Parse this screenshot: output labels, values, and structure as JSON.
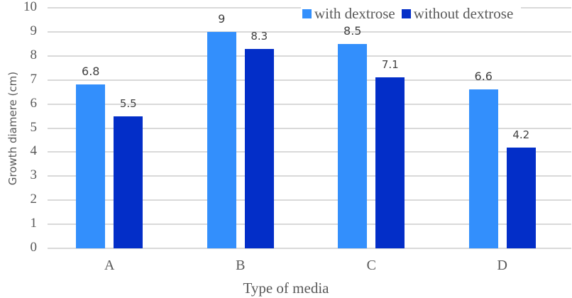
{
  "chart_data": {
    "type": "bar",
    "title": "",
    "xlabel": "Type of media",
    "ylabel": "Growth diamere (cm)",
    "categories": [
      "A",
      "B",
      "C",
      "D"
    ],
    "series": [
      {
        "name": "with dextrose",
        "color": "#338ffc",
        "values": [
          6.8,
          9,
          8.5,
          6.6
        ],
        "labels": [
          "6.8",
          "9",
          "8.5",
          "6.6"
        ]
      },
      {
        "name": "without dextrose",
        "color": "#032ec8",
        "values": [
          5.5,
          8.3,
          7.1,
          4.2
        ],
        "labels": [
          "5.5",
          "8.3",
          "7.1",
          "4.2"
        ]
      }
    ],
    "ylim": [
      0,
      10
    ],
    "yticks": [
      "0",
      "1",
      "2",
      "3",
      "4",
      "5",
      "6",
      "7",
      "8",
      "9",
      "10"
    ],
    "grid": true,
    "legend_position": "top-right"
  }
}
